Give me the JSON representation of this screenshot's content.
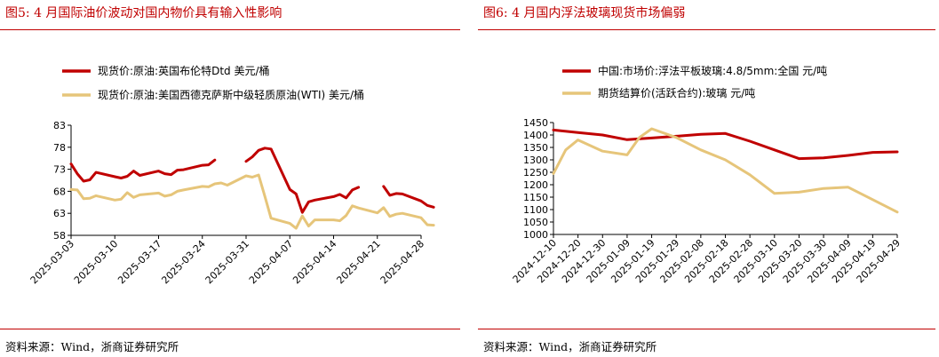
{
  "colors": {
    "accent": "#c00000",
    "series_primary": "#c00000",
    "series_secondary": "#e6c57a"
  },
  "footer_source": "资料来源：Wind，浙商证券研究所",
  "figures": [
    {
      "title": "图5:   4 月国际油价波动对国内物价具有输入性影响"
    },
    {
      "title": "图6:   4 月国内浮法玻璃现货市场偏弱"
    }
  ],
  "chart_data": [
    {
      "type": "line",
      "title": "",
      "xlabel": "",
      "ylabel": "",
      "ylim": [
        58,
        83
      ],
      "yticks": [
        58,
        63,
        68,
        73,
        78,
        83
      ],
      "xticks": [
        "2025-03-03",
        "2025-03-10",
        "2025-03-17",
        "2025-03-24",
        "2025-03-31",
        "2025-04-07",
        "2025-04-14",
        "2025-04-21",
        "2025-04-28"
      ],
      "legend_position": "top-left",
      "series": [
        {
          "name": "现货价:原油:英国布伦特Dtd 美元/桶",
          "color": "#c00000",
          "points": [
            [
              "2025-03-03",
              74.2
            ],
            [
              "2025-03-04",
              72.0
            ],
            [
              "2025-03-05",
              70.3
            ],
            [
              "2025-03-06",
              70.6
            ],
            [
              "2025-03-07",
              72.3
            ],
            [
              "2025-03-10",
              71.3
            ],
            [
              "2025-03-11",
              71.0
            ],
            [
              "2025-03-12",
              71.4
            ],
            [
              "2025-03-13",
              72.6
            ],
            [
              "2025-03-14",
              71.6
            ],
            [
              "2025-03-17",
              72.6
            ],
            [
              "2025-03-18",
              72.0
            ],
            [
              "2025-03-19",
              71.8
            ],
            [
              "2025-03-20",
              72.8
            ],
            [
              "2025-03-21",
              72.9
            ],
            [
              "2025-03-24",
              73.9
            ],
            [
              "2025-03-25",
              74.0
            ],
            [
              "2025-03-26",
              75.1
            ],
            [
              "2025-03-28",
              null
            ],
            [
              "2025-03-31",
              74.8
            ],
            [
              "2025-04-01",
              75.8
            ],
            [
              "2025-04-02",
              77.3
            ],
            [
              "2025-04-03",
              77.8
            ],
            [
              "2025-04-04",
              77.6
            ],
            [
              "2025-04-07",
              68.4
            ],
            [
              "2025-04-08",
              67.4
            ],
            [
              "2025-04-09",
              63.2
            ],
            [
              "2025-04-10",
              65.6
            ],
            [
              "2025-04-11",
              66.0
            ],
            [
              "2025-04-14",
              66.8
            ],
            [
              "2025-04-15",
              67.3
            ],
            [
              "2025-04-16",
              66.5
            ],
            [
              "2025-04-17",
              68.3
            ],
            [
              "2025-04-18",
              68.9
            ],
            [
              "2025-04-21",
              null
            ],
            [
              "2025-04-22",
              69.1
            ],
            [
              "2025-04-23",
              67.1
            ],
            [
              "2025-04-24",
              67.5
            ],
            [
              "2025-04-25",
              67.4
            ],
            [
              "2025-04-28",
              65.8
            ],
            [
              "2025-04-29",
              64.8
            ],
            [
              "2025-04-30",
              64.4
            ]
          ]
        },
        {
          "name": "现货价:原油:美国西德克萨斯中级轻质原油(WTI) 美元/桶",
          "color": "#e6c57a",
          "points": [
            [
              "2025-03-03",
              68.4
            ],
            [
              "2025-03-04",
              68.3
            ],
            [
              "2025-03-05",
              66.3
            ],
            [
              "2025-03-06",
              66.4
            ],
            [
              "2025-03-07",
              67.0
            ],
            [
              "2025-03-10",
              66.0
            ],
            [
              "2025-03-11",
              66.2
            ],
            [
              "2025-03-12",
              67.7
            ],
            [
              "2025-03-13",
              66.6
            ],
            [
              "2025-03-14",
              67.2
            ],
            [
              "2025-03-17",
              67.6
            ],
            [
              "2025-03-18",
              66.9
            ],
            [
              "2025-03-19",
              67.2
            ],
            [
              "2025-03-20",
              68.0
            ],
            [
              "2025-03-21",
              68.3
            ],
            [
              "2025-03-24",
              69.1
            ],
            [
              "2025-03-25",
              69.0
            ],
            [
              "2025-03-26",
              69.7
            ],
            [
              "2025-03-27",
              69.9
            ],
            [
              "2025-03-28",
              69.4
            ],
            [
              "2025-03-31",
              71.5
            ],
            [
              "2025-04-01",
              71.2
            ],
            [
              "2025-04-02",
              71.7
            ],
            [
              "2025-04-03",
              66.9
            ],
            [
              "2025-04-04",
              61.9
            ],
            [
              "2025-04-07",
              60.7
            ],
            [
              "2025-04-08",
              59.6
            ],
            [
              "2025-04-09",
              62.4
            ],
            [
              "2025-04-10",
              60.1
            ],
            [
              "2025-04-11",
              61.5
            ],
            [
              "2025-04-14",
              61.5
            ],
            [
              "2025-04-15",
              61.3
            ],
            [
              "2025-04-16",
              62.5
            ],
            [
              "2025-04-17",
              64.7
            ],
            [
              "2025-04-18",
              64.2
            ],
            [
              "2025-04-21",
              63.1
            ],
            [
              "2025-04-22",
              64.3
            ],
            [
              "2025-04-23",
              62.3
            ],
            [
              "2025-04-24",
              62.8
            ],
            [
              "2025-04-25",
              63.0
            ],
            [
              "2025-04-28",
              62.0
            ],
            [
              "2025-04-29",
              60.4
            ],
            [
              "2025-04-30",
              60.3
            ]
          ]
        }
      ]
    },
    {
      "type": "line",
      "title": "",
      "xlabel": "",
      "ylabel": "",
      "ylim": [
        1000,
        1450
      ],
      "yticks": [
        1000,
        1050,
        1100,
        1150,
        1200,
        1250,
        1300,
        1350,
        1400,
        1450
      ],
      "xticks": [
        "2024-12-10",
        "2024-12-20",
        "2024-12-30",
        "2025-01-09",
        "2025-01-19",
        "2025-01-29",
        "2025-02-08",
        "2025-02-18",
        "2025-02-28",
        "2025-03-10",
        "2025-03-20",
        "2025-03-30",
        "2025-04-09",
        "2025-04-19",
        "2025-04-29"
      ],
      "legend_position": "top-left",
      "series": [
        {
          "name": "中国:市场价:浮法平板玻璃:4.8/5mm:全国 元/吨",
          "color": "#c00000",
          "points": [
            [
              "2024-12-10",
              1420
            ],
            [
              "2024-12-20",
              1410
            ],
            [
              "2024-12-30",
              1400
            ],
            [
              "2025-01-09",
              1381
            ],
            [
              "2025-01-19",
              1388
            ],
            [
              "2025-01-29",
              1395
            ],
            [
              "2025-02-08",
              1403
            ],
            [
              "2025-02-18",
              1406
            ],
            [
              "2025-02-28",
              1375
            ],
            [
              "2025-03-10",
              1340
            ],
            [
              "2025-03-20",
              1305
            ],
            [
              "2025-03-30",
              1308
            ],
            [
              "2025-04-09",
              1318
            ],
            [
              "2025-04-19",
              1330
            ],
            [
              "2025-04-29",
              1332
            ]
          ]
        },
        {
          "name": "期货结算价(活跃合约):玻璃 元/吨",
          "color": "#e6c57a",
          "points": [
            [
              "2024-12-10",
              1245
            ],
            [
              "2024-12-15",
              1340
            ],
            [
              "2024-12-20",
              1380
            ],
            [
              "2024-12-30",
              1335
            ],
            [
              "2025-01-09",
              1320
            ],
            [
              "2025-01-14",
              1390
            ],
            [
              "2025-01-19",
              1425
            ],
            [
              "2025-01-29",
              1390
            ],
            [
              "2025-02-08",
              1340
            ],
            [
              "2025-02-18",
              1300
            ],
            [
              "2025-02-28",
              1240
            ],
            [
              "2025-03-10",
              1165
            ],
            [
              "2025-03-20",
              1170
            ],
            [
              "2025-03-30",
              1185
            ],
            [
              "2025-04-09",
              1190
            ],
            [
              "2025-04-19",
              1140
            ],
            [
              "2025-04-29",
              1090
            ]
          ]
        }
      ]
    }
  ]
}
